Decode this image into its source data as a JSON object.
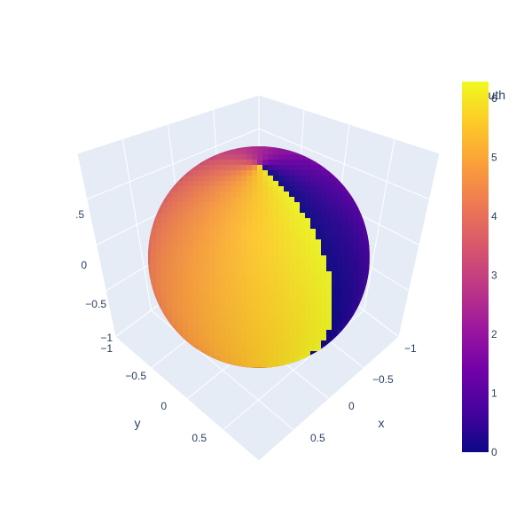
{
  "chart_data": {
    "type": "scatter3d",
    "colorbar": {
      "title": "azimuth",
      "range": [
        0,
        6.283
      ],
      "ticks": [
        "0",
        "1",
        "2",
        "3",
        "4",
        "5",
        "6"
      ],
      "colorscale": [
        "#0d0887",
        "#46039f",
        "#7201a8",
        "#9c179e",
        "#bd3786",
        "#d8576b",
        "#ed7953",
        "#fb9f3a",
        "#fdca26",
        "#f0f921"
      ]
    },
    "axes": {
      "x": {
        "title": "x",
        "range": [
          -1,
          1
        ],
        "ticks": [
          "−1",
          "−0.5",
          "0",
          "0.5"
        ]
      },
      "y": {
        "title": "y",
        "range": [
          -1,
          1
        ],
        "ticks": [
          "−1",
          "−0.5",
          "0",
          "0.5"
        ]
      },
      "z": {
        "title": "",
        "range": [
          -1,
          1
        ],
        "ticks": [
          "−1",
          "−0.5",
          "0",
          ".5"
        ]
      }
    },
    "surface": {
      "shape": "unit sphere",
      "color_variable": "azimuth"
    },
    "scene_background": "#e5ecf6",
    "grid_color": "#ffffff"
  }
}
